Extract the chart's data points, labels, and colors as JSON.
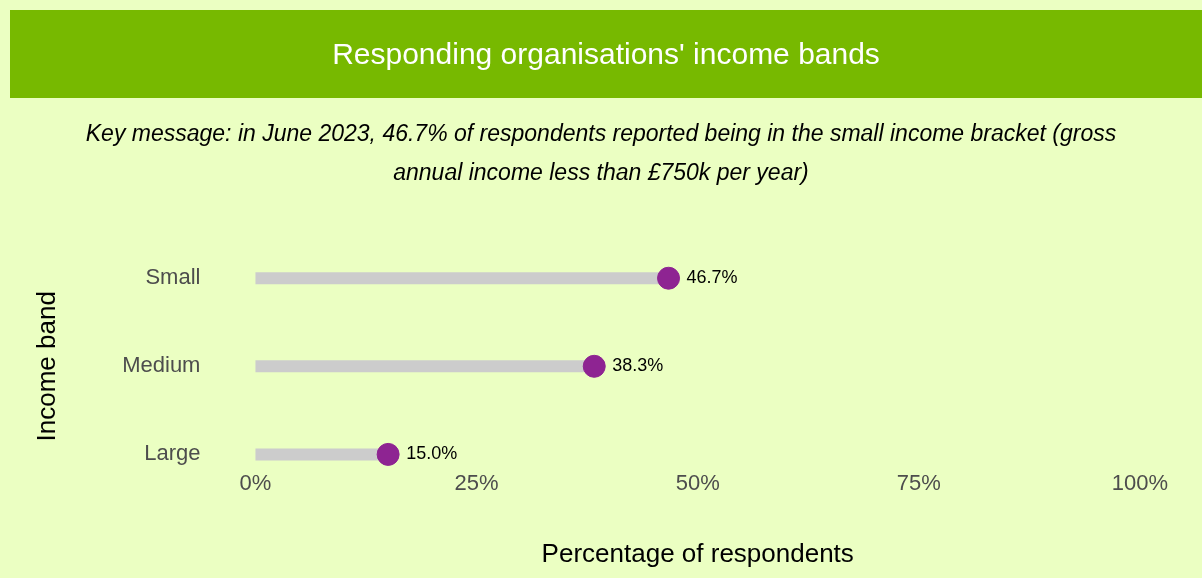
{
  "chart_data": {
    "type": "lollipop",
    "orientation": "horizontal",
    "title": "Responding organisations' income bands",
    "subtitle": "Key message: in June 2023, 46.7% of respondents reported being in the small income bracket (gross annual income less than £750k per year)",
    "categories": [
      "Small",
      "Medium",
      "Large"
    ],
    "values": [
      46.7,
      38.3,
      15.0
    ],
    "value_labels": [
      "46.7%",
      "38.3%",
      "15.0%"
    ],
    "color": "#8e2492",
    "marker": "circle",
    "xlabel": "Percentage of respondents",
    "ylabel": "Income band",
    "xlim": [
      0,
      100
    ],
    "xticks": [
      {
        "value": 0,
        "label": "0%"
      },
      {
        "value": 25,
        "label": "25%"
      },
      {
        "value": 50,
        "label": "50%"
      },
      {
        "value": 75,
        "label": "75%"
      },
      {
        "value": 100,
        "label": "100%"
      }
    ],
    "grid": false,
    "legend": false
  }
}
